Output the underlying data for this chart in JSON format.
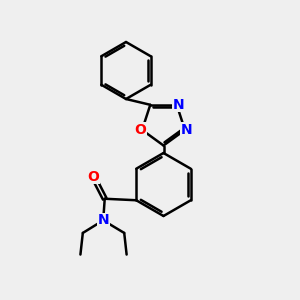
{
  "background_color": "#efefef",
  "line_color": "#000000",
  "bond_lw": 1.8,
  "atom_colors": {
    "N": "#0000ff",
    "O": "#ff0000"
  },
  "font_size": 10
}
